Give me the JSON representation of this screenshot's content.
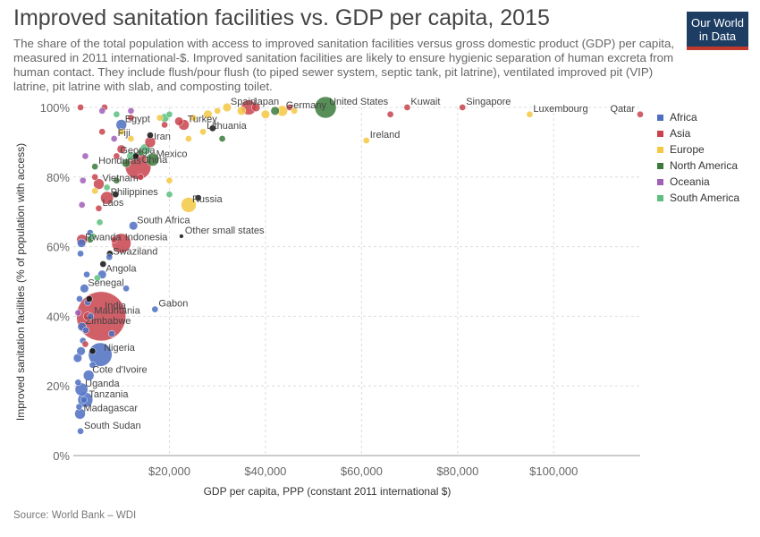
{
  "header": {
    "title": "Improved sanitation facilities vs. GDP per capita, 2015",
    "subtitle": "The share of the total population with access to improved sanitation facilities versus gross domestic product (GDP) per capita, measured in 2011 international-$. Improved sanitation facilities are likely to ensure hygienic separation of human excreta from human contact. They include flush/pour flush (to piped sewer system, septic tank, pit latrine), ventilated improved pit (VIP) latrine, pit latrine with slab, and composting toilet.",
    "logo_line1": "Our World",
    "logo_line2": "in Data"
  },
  "footer": {
    "source": "Source: World Bank – WDI"
  },
  "chart_data": {
    "type": "scatter",
    "xlabel": "GDP per capita, PPP (constant 2011 international $)",
    "ylabel": "Improved sanitation facilities (% of population with access)",
    "xlim": [
      0,
      118000
    ],
    "ylim": [
      0,
      100
    ],
    "x_ticks": [
      {
        "value": 20000,
        "label": "$20,000"
      },
      {
        "value": 40000,
        "label": "$40,000"
      },
      {
        "value": 60000,
        "label": "$60,000"
      },
      {
        "value": 80000,
        "label": "$80,000"
      },
      {
        "value": 100000,
        "label": "$100,000"
      }
    ],
    "y_ticks": [
      {
        "value": 0,
        "label": "0%"
      },
      {
        "value": 20,
        "label": "20%"
      },
      {
        "value": 40,
        "label": "40%"
      },
      {
        "value": 60,
        "label": "60%"
      },
      {
        "value": 80,
        "label": "80%"
      },
      {
        "value": 100,
        "label": "100%"
      }
    ],
    "grid": true,
    "legend_position": "right",
    "series": [
      {
        "name": "Africa",
        "color": "#4c6fc2"
      },
      {
        "name": "Asia",
        "color": "#c8434d"
      },
      {
        "name": "Europe",
        "color": "#f5c842"
      },
      {
        "name": "North America",
        "color": "#3b7a3b"
      },
      {
        "name": "Oceania",
        "color": "#a05fb8"
      },
      {
        "name": "South America",
        "color": "#5cbf7f"
      }
    ],
    "labeled_points": [
      {
        "label": "Qatar",
        "x": 118000,
        "y": 98,
        "region": "Asia",
        "size": 2
      },
      {
        "label": "Luxembourg",
        "x": 95000,
        "y": 98,
        "region": "Europe",
        "size": 2
      },
      {
        "label": "Singapore",
        "x": 81000,
        "y": 100,
        "region": "Asia",
        "size": 2
      },
      {
        "label": "Kuwait",
        "x": 69500,
        "y": 100,
        "region": "Asia",
        "size": 2
      },
      {
        "label": "Ireland",
        "x": 61000,
        "y": 90.5,
        "region": "Europe",
        "size": 2
      },
      {
        "label": "United States",
        "x": 52500,
        "y": 100,
        "region": "North America",
        "size": 9
      },
      {
        "label": "Germany",
        "x": 43500,
        "y": 99,
        "region": "Europe",
        "size": 4
      },
      {
        "label": "Japan",
        "x": 36500,
        "y": 100,
        "region": "Asia",
        "size": 6
      },
      {
        "label": "Spain",
        "x": 32000,
        "y": 100,
        "region": "Europe",
        "size": 3
      },
      {
        "label": "Turkey",
        "x": 23000,
        "y": 95,
        "region": "Asia",
        "size": 4
      },
      {
        "label": "Lithuania",
        "x": 27000,
        "y": 93,
        "region": "Europe",
        "size": 2
      },
      {
        "label": "Iran",
        "x": 16000,
        "y": 90,
        "region": "Asia",
        "size": 4
      },
      {
        "label": "Egypt",
        "x": 10000,
        "y": 95,
        "region": "Africa",
        "size": 4
      },
      {
        "label": "Fiji",
        "x": 8500,
        "y": 91,
        "region": "Oceania",
        "size": 2
      },
      {
        "label": "Georgia",
        "x": 9000,
        "y": 86,
        "region": "Asia",
        "size": 2
      },
      {
        "label": "Mexico",
        "x": 16500,
        "y": 85,
        "region": "North America",
        "size": 5
      },
      {
        "label": "China",
        "x": 13500,
        "y": 83,
        "region": "Asia",
        "size": 11
      },
      {
        "label": "Honduras",
        "x": 4500,
        "y": 83,
        "region": "North America",
        "size": 2
      },
      {
        "label": "Vietnam",
        "x": 5300,
        "y": 78,
        "region": "Asia",
        "size": 4
      },
      {
        "label": "Philippines",
        "x": 7000,
        "y": 74,
        "region": "Asia",
        "size": 5
      },
      {
        "label": "Russia",
        "x": 24000,
        "y": 72,
        "region": "Europe",
        "size": 6
      },
      {
        "label": "Laos",
        "x": 5300,
        "y": 71,
        "region": "Asia",
        "size": 2
      },
      {
        "label": "South Africa",
        "x": 12500,
        "y": 66,
        "region": "Africa",
        "size": 3
      },
      {
        "label": "Indonesia",
        "x": 10000,
        "y": 61,
        "region": "Asia",
        "size": 8
      },
      {
        "label": "Other small states",
        "x": 22500,
        "y": 63,
        "region": "Other",
        "size": 1
      },
      {
        "label": "Rwanda",
        "x": 1700,
        "y": 61,
        "region": "Africa",
        "size": 3
      },
      {
        "label": "Swaziland",
        "x": 7500,
        "y": 57,
        "region": "Africa",
        "size": 2
      },
      {
        "label": "Angola",
        "x": 6000,
        "y": 52,
        "region": "Africa",
        "size": 3
      },
      {
        "label": "Senegal",
        "x": 2300,
        "y": 48,
        "region": "Africa",
        "size": 3
      },
      {
        "label": "Gabon",
        "x": 17000,
        "y": 42,
        "region": "Africa",
        "size": 2
      },
      {
        "label": "India",
        "x": 5800,
        "y": 40,
        "region": "Asia",
        "size": 22
      },
      {
        "label": "Mauritania",
        "x": 3600,
        "y": 40,
        "region": "Africa",
        "size": 2
      },
      {
        "label": "Zimbabwe",
        "x": 1800,
        "y": 37,
        "region": "Africa",
        "size": 3
      },
      {
        "label": "Nigeria",
        "x": 5600,
        "y": 29,
        "region": "Africa",
        "size": 10
      },
      {
        "label": "Cote d'Ivoire",
        "x": 3200,
        "y": 23,
        "region": "Africa",
        "size": 4
      },
      {
        "label": "Uganda",
        "x": 1700,
        "y": 19,
        "region": "Africa",
        "size": 5
      },
      {
        "label": "Tanzania",
        "x": 2500,
        "y": 16,
        "region": "Africa",
        "size": 6
      },
      {
        "label": "Madagascar",
        "x": 1400,
        "y": 12,
        "region": "Africa",
        "size": 4
      },
      {
        "label": "South Sudan",
        "x": 1500,
        "y": 7,
        "region": "Africa",
        "size": 2
      }
    ],
    "other_points": [
      {
        "x": 1200,
        "y": 14,
        "region": "Africa",
        "size": 2
      },
      {
        "x": 1000,
        "y": 21,
        "region": "Africa",
        "size": 2
      },
      {
        "x": 900,
        "y": 28,
        "region": "Africa",
        "size": 3
      },
      {
        "x": 1600,
        "y": 30,
        "region": "Africa",
        "size": 3
      },
      {
        "x": 2000,
        "y": 33,
        "region": "Africa",
        "size": 2
      },
      {
        "x": 2600,
        "y": 36,
        "region": "Africa",
        "size": 2
      },
      {
        "x": 3000,
        "y": 44,
        "region": "Africa",
        "size": 2
      },
      {
        "x": 2800,
        "y": 52,
        "region": "Africa",
        "size": 2
      },
      {
        "x": 1500,
        "y": 58,
        "region": "Africa",
        "size": 2
      },
      {
        "x": 3500,
        "y": 64,
        "region": "Africa",
        "size": 2
      },
      {
        "x": 8000,
        "y": 35,
        "region": "Africa",
        "size": 2
      },
      {
        "x": 11000,
        "y": 48,
        "region": "Africa",
        "size": 2
      },
      {
        "x": 1300,
        "y": 45,
        "region": "Africa",
        "size": 2
      },
      {
        "x": 4000,
        "y": 26,
        "region": "Africa",
        "size": 2
      },
      {
        "x": 2200,
        "y": 16,
        "region": "Africa",
        "size": 2
      },
      {
        "x": 1800,
        "y": 62,
        "region": "Asia",
        "size": 4
      },
      {
        "x": 2500,
        "y": 32,
        "region": "Asia",
        "size": 2
      },
      {
        "x": 3000,
        "y": 40,
        "region": "Asia",
        "size": 3
      },
      {
        "x": 6000,
        "y": 93,
        "region": "Asia",
        "size": 2
      },
      {
        "x": 10000,
        "y": 88,
        "region": "Asia",
        "size": 3
      },
      {
        "x": 12000,
        "y": 97,
        "region": "Asia",
        "size": 2
      },
      {
        "x": 14000,
        "y": 80,
        "region": "Asia",
        "size": 2
      },
      {
        "x": 19000,
        "y": 95,
        "region": "Asia",
        "size": 2
      },
      {
        "x": 22000,
        "y": 96,
        "region": "Asia",
        "size": 3
      },
      {
        "x": 38000,
        "y": 100,
        "region": "Asia",
        "size": 3
      },
      {
        "x": 45000,
        "y": 100,
        "region": "Asia",
        "size": 2
      },
      {
        "x": 66000,
        "y": 98,
        "region": "Asia",
        "size": 2
      },
      {
        "x": 8500,
        "y": 62,
        "region": "Asia",
        "size": 2
      },
      {
        "x": 4500,
        "y": 80,
        "region": "Asia",
        "size": 2
      },
      {
        "x": 6500,
        "y": 100,
        "region": "Asia",
        "size": 2
      },
      {
        "x": 25000,
        "y": 97,
        "region": "Europe",
        "size": 2
      },
      {
        "x": 28000,
        "y": 98,
        "region": "Europe",
        "size": 3
      },
      {
        "x": 30000,
        "y": 99,
        "region": "Europe",
        "size": 2
      },
      {
        "x": 35000,
        "y": 99,
        "region": "Europe",
        "size": 3
      },
      {
        "x": 40000,
        "y": 98,
        "region": "Europe",
        "size": 3
      },
      {
        "x": 46000,
        "y": 99,
        "region": "Europe",
        "size": 2
      },
      {
        "x": 10000,
        "y": 93,
        "region": "Europe",
        "size": 2
      },
      {
        "x": 12000,
        "y": 91,
        "region": "Europe",
        "size": 2
      },
      {
        "x": 20000,
        "y": 79,
        "region": "Europe",
        "size": 2
      },
      {
        "x": 18000,
        "y": 97,
        "region": "Europe",
        "size": 2
      },
      {
        "x": 4500,
        "y": 76,
        "region": "Europe",
        "size": 2
      },
      {
        "x": 24000,
        "y": 91,
        "region": "Europe",
        "size": 2
      },
      {
        "x": 14000,
        "y": 87,
        "region": "North America",
        "size": 2
      },
      {
        "x": 9000,
        "y": 79,
        "region": "North America",
        "size": 2
      },
      {
        "x": 11000,
        "y": 84,
        "region": "North America",
        "size": 3
      },
      {
        "x": 31000,
        "y": 91,
        "region": "North America",
        "size": 2
      },
      {
        "x": 42000,
        "y": 99,
        "region": "North America",
        "size": 3
      },
      {
        "x": 3500,
        "y": 62,
        "region": "North America",
        "size": 2
      },
      {
        "x": 2500,
        "y": 86,
        "region": "Oceania",
        "size": 2
      },
      {
        "x": 2000,
        "y": 79,
        "region": "Oceania",
        "size": 2
      },
      {
        "x": 1800,
        "y": 72,
        "region": "Oceania",
        "size": 2
      },
      {
        "x": 1000,
        "y": 41,
        "region": "Oceania",
        "size": 2
      },
      {
        "x": 6000,
        "y": 99,
        "region": "Oceania",
        "size": 2
      },
      {
        "x": 12000,
        "y": 99,
        "region": "Oceania",
        "size": 2
      },
      {
        "x": 19000,
        "y": 97,
        "region": "South America",
        "size": 3
      },
      {
        "x": 15000,
        "y": 88,
        "region": "South America",
        "size": 4
      },
      {
        "x": 12000,
        "y": 86,
        "region": "South America",
        "size": 3
      },
      {
        "x": 9000,
        "y": 98,
        "region": "South America",
        "size": 2
      },
      {
        "x": 7000,
        "y": 77,
        "region": "South America",
        "size": 2
      },
      {
        "x": 5500,
        "y": 67,
        "region": "South America",
        "size": 2
      },
      {
        "x": 20000,
        "y": 75,
        "region": "South America",
        "size": 2
      },
      {
        "x": 20000,
        "y": 98,
        "region": "South America",
        "size": 2
      },
      {
        "x": 4000,
        "y": 63,
        "region": "South America",
        "size": 2
      },
      {
        "x": 5000,
        "y": 51,
        "region": "South America",
        "size": 2
      },
      {
        "x": 1500,
        "y": 100,
        "region": "Asia",
        "size": 2
      },
      {
        "x": 13000,
        "y": 86,
        "region": "Other",
        "size": 2
      },
      {
        "x": 16000,
        "y": 92,
        "region": "Other",
        "size": 2
      },
      {
        "x": 3300,
        "y": 45,
        "region": "Other",
        "size": 2
      },
      {
        "x": 4000,
        "y": 30,
        "region": "Other",
        "size": 2
      },
      {
        "x": 7600,
        "y": 58,
        "region": "Other",
        "size": 2
      },
      {
        "x": 26000,
        "y": 74,
        "region": "Other",
        "size": 2
      },
      {
        "x": 29000,
        "y": 94,
        "region": "Other",
        "size": 2
      },
      {
        "x": 8800,
        "y": 75,
        "region": "Other",
        "size": 2
      },
      {
        "x": 6200,
        "y": 55,
        "region": "Other",
        "size": 2
      }
    ]
  }
}
